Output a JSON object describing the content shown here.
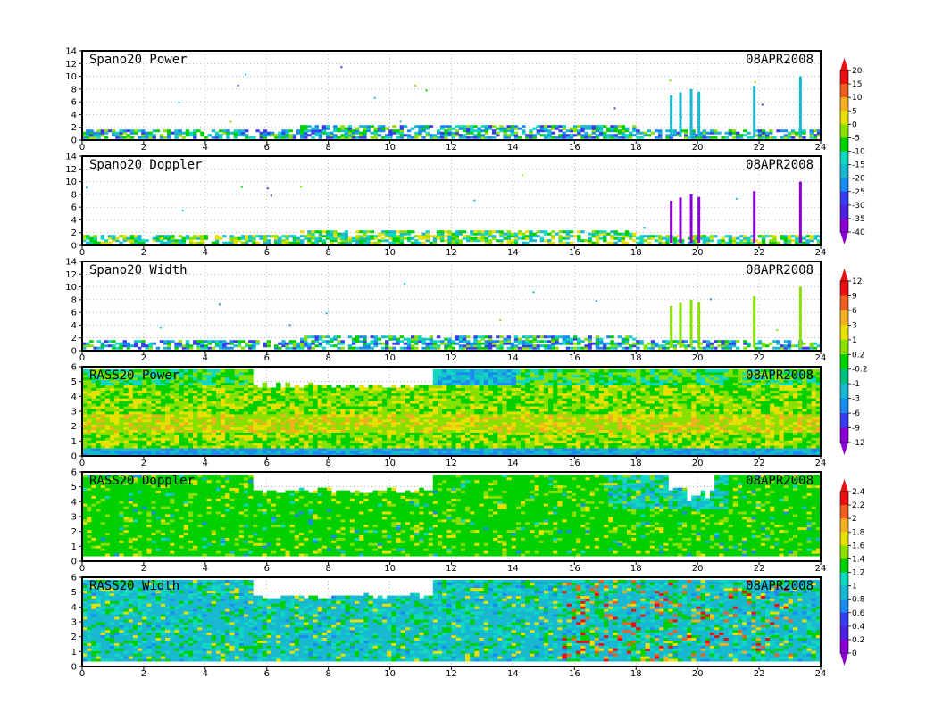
{
  "colors": {
    "scale": [
      "#8a00d4",
      "#3a3cf0",
      "#1a8cf0",
      "#18b8d0",
      "#10d8c0",
      "#00d000",
      "#88e000",
      "#e8e000",
      "#f0b020",
      "#f06020",
      "#e81010"
    ]
  },
  "chart_data": [
    {
      "type": "heatmap",
      "title": "Spano20 Power",
      "date": "08APR2008",
      "xlim": [
        0,
        24
      ],
      "ylim": [
        0,
        14
      ],
      "x_ticks": [
        "0",
        "2",
        "4",
        "6",
        "8",
        "10",
        "12",
        "14",
        "16",
        "18",
        "20",
        "22",
        "24"
      ],
      "y_ticks": [
        "0",
        "2",
        "4",
        "6",
        "8",
        "10",
        "12",
        "14"
      ],
      "colorbar": {
        "labels": [
          "20",
          "15",
          "10",
          "5",
          "0",
          "-5",
          "-10",
          "-15",
          "-20",
          "-25",
          "-30",
          "-35",
          "-40"
        ]
      }
    },
    {
      "type": "heatmap",
      "title": "Spano20 Doppler",
      "date": "08APR2008",
      "xlim": [
        0,
        24
      ],
      "ylim": [
        0,
        14
      ],
      "x_ticks": [
        "0",
        "2",
        "4",
        "6",
        "8",
        "10",
        "12",
        "14",
        "16",
        "18",
        "20",
        "22",
        "24"
      ],
      "y_ticks": [
        "0",
        "2",
        "4",
        "6",
        "8",
        "10",
        "12",
        "14"
      ],
      "colorbar": null
    },
    {
      "type": "heatmap",
      "title": "Spano20 Width",
      "date": "08APR2008",
      "xlim": [
        0,
        24
      ],
      "ylim": [
        0,
        14
      ],
      "x_ticks": [
        "0",
        "2",
        "4",
        "6",
        "8",
        "10",
        "12",
        "14",
        "16",
        "18",
        "20",
        "22",
        "24"
      ],
      "y_ticks": [
        "0",
        "2",
        "4",
        "6",
        "8",
        "10",
        "12",
        "14"
      ],
      "colorbar": {
        "labels": [
          "12",
          "9",
          "6",
          "3",
          "1",
          "0.2",
          "-0.2",
          "-1",
          "-3",
          "-6",
          "-9",
          "-12"
        ]
      }
    },
    {
      "type": "heatmap",
      "title": "RASS20 Power",
      "date": "08APR2008",
      "xlim": [
        0,
        24
      ],
      "ylim": [
        0,
        6
      ],
      "x_ticks": [
        "0",
        "2",
        "4",
        "6",
        "8",
        "10",
        "12",
        "14",
        "16",
        "18",
        "20",
        "22",
        "24"
      ],
      "y_ticks": [
        "0",
        "1",
        "2",
        "3",
        "4",
        "5",
        "6"
      ],
      "colorbar": null
    },
    {
      "type": "heatmap",
      "title": "RASS20 Doppler",
      "date": "08APR2008",
      "xlim": [
        0,
        24
      ],
      "ylim": [
        0,
        6
      ],
      "x_ticks": [
        "0",
        "2",
        "4",
        "6",
        "8",
        "10",
        "12",
        "14",
        "16",
        "18",
        "20",
        "22",
        "24"
      ],
      "y_ticks": [
        "0",
        "1",
        "2",
        "3",
        "4",
        "5",
        "6"
      ],
      "colorbar": {
        "labels": [
          "2.4",
          "2.2",
          "2",
          "1.8",
          "1.6",
          "1.4",
          "1.2",
          "1",
          "0.8",
          "0.6",
          "0.4",
          "0.2",
          "0"
        ]
      }
    },
    {
      "type": "heatmap",
      "title": "RASS20 Width",
      "date": "08APR2008",
      "xlim": [
        0,
        24
      ],
      "ylim": [
        0,
        6
      ],
      "x_ticks": [
        "0",
        "2",
        "4",
        "6",
        "8",
        "10",
        "12",
        "14",
        "16",
        "18",
        "20",
        "22",
        "24"
      ],
      "y_ticks": [
        "0",
        "1",
        "2",
        "3",
        "4",
        "5",
        "6"
      ],
      "colorbar": null
    }
  ]
}
